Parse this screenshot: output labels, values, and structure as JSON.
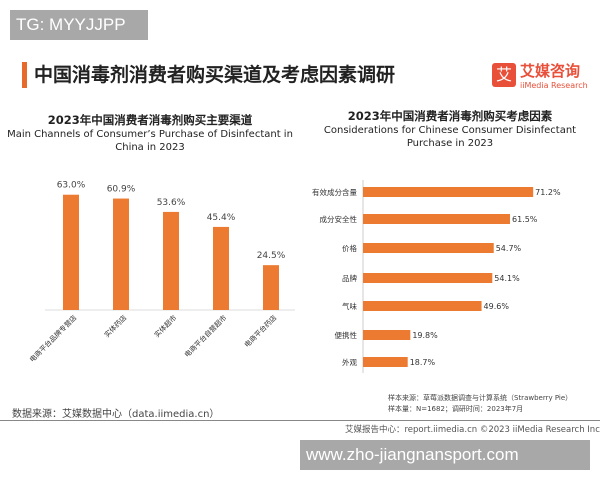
{
  "watermark_top": "TG: MYYJJPP",
  "title": "中国消毒剂消费者购买渠道及考虑因素调研",
  "logo": {
    "cn": "艾媒咨询",
    "en": "iiMedia Research",
    "mark": "艾"
  },
  "chart_data": [
    {
      "type": "bar",
      "title": "2023年中国消费者消毒剂购买主要渠道",
      "subtitle": "Main Channels of Consumer’s Purchase of Disinfectant in China in 2023",
      "categories": [
        "电商平台品牌专营店",
        "实体药店",
        "实体超市",
        "电商平台自营超市",
        "电商平台药店"
      ],
      "values": [
        63.0,
        60.9,
        53.6,
        45.4,
        24.5
      ],
      "labels": [
        "63.0%",
        "60.9%",
        "53.6%",
        "45.4%",
        "24.5%"
      ],
      "color": "#ec7a30",
      "unit": "%"
    },
    {
      "type": "bar",
      "orientation": "horizontal",
      "title": "2023年中国消费者消毒剂购买考虑因素",
      "subtitle": "Considerations for Chinese Consumer Disinfectant Purchase in 2023",
      "categories": [
        "有效成分含量",
        "成分安全性",
        "价格",
        "品牌",
        "气味",
        "便携性",
        "外观"
      ],
      "values": [
        71.2,
        61.5,
        54.7,
        54.1,
        49.6,
        19.8,
        18.7
      ],
      "labels": [
        "71.2%",
        "61.5%",
        "54.7%",
        "54.1%",
        "49.6%",
        "19.8%",
        "18.7%"
      ],
      "color": "#ec7a30",
      "unit": "%"
    }
  ],
  "source": "数据来源：艾媒数据中心（data.iimedia.cn）",
  "sample_source": "样本来源：草莓派数据调查与计算系统（Strawberry Pie）",
  "sample_size": "样本量：N=1682；调研时间：2023年7月",
  "footer": "艾媒报告中心：report.iimedia.cn   ©2023  iiMedia Research Inc",
  "watermark_bottom": "www.zho-jiangnansport.com"
}
